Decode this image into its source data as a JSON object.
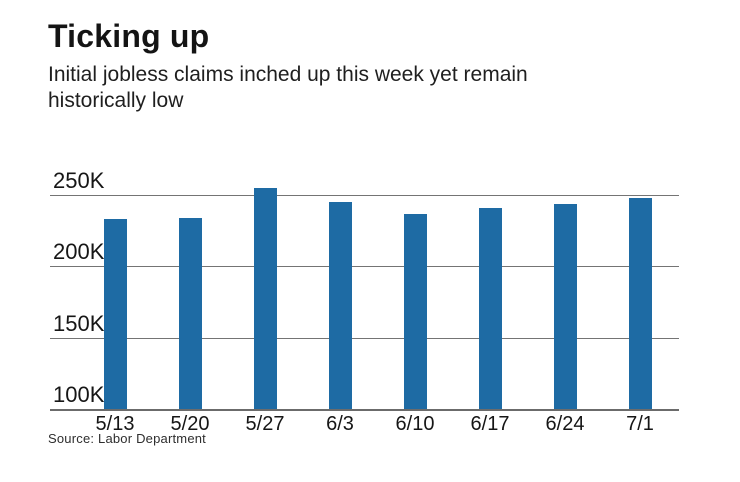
{
  "header": {
    "title": "Ticking up",
    "subtitle_lines": [
      "Initial jobless claims inched up this week yet remain",
      "historically low"
    ]
  },
  "source_note": "Source: Labor Department",
  "chart_data": {
    "type": "bar",
    "title": "Ticking up",
    "subtitle": "Initial jobless claims inched up this week yet remain historically low",
    "categories": [
      "5/13",
      "5/20",
      "5/27",
      "6/3",
      "6/10",
      "6/17",
      "6/24",
      "7/1"
    ],
    "values": [
      233000,
      234000,
      255000,
      245000,
      237000,
      241000,
      244000,
      248000
    ],
    "value_labels": [
      "233K",
      "234K",
      "255K",
      "245K",
      "237K",
      "241K",
      "244K",
      "248K"
    ],
    "xlabel": "",
    "ylabel": "",
    "ylim": [
      100000,
      262000
    ],
    "yticks": [
      250000,
      200000,
      150000,
      100000
    ],
    "ytick_labels": [
      "250K",
      "200K",
      "150K",
      "100K"
    ],
    "grid": true,
    "legend": false,
    "bar_color": "#1e6ba4",
    "grid_color": "#747474",
    "axis_color": "#6b6b6b",
    "text_color": "#161616",
    "source": "Source: Labor Department"
  }
}
